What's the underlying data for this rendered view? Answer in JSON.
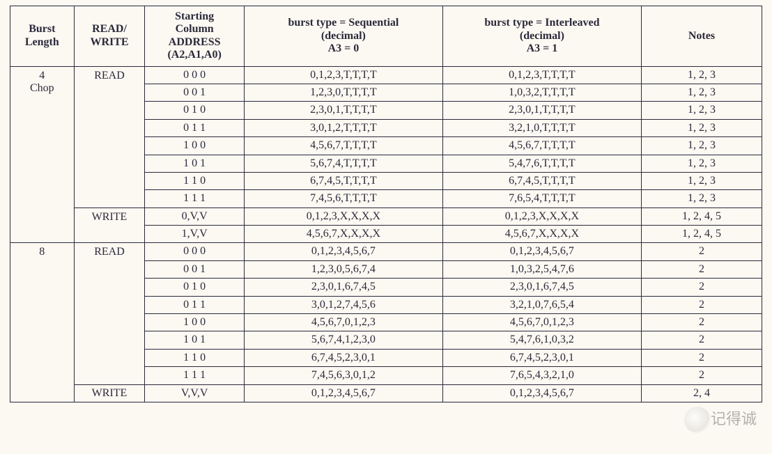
{
  "table": {
    "headers": {
      "burst_length": "Burst\nLength",
      "read_write": "READ/\nWRITE",
      "addr": "Starting\nColumn\nADDRESS\n(A2,A1,A0)",
      "seq": "burst type = Sequential\n(decimal)\nA3 = 0",
      "int": "burst type = Interleaved\n(decimal)\nA3 = 1",
      "notes": "Notes"
    },
    "sections": [
      {
        "burst_length": "4\nChop",
        "groups": [
          {
            "rw": "READ",
            "rows": [
              {
                "addr": "0 0 0",
                "seq": "0,1,2,3,T,T,T,T",
                "int": "0,1,2,3,T,T,T,T",
                "notes": "1, 2, 3"
              },
              {
                "addr": "0 0 1",
                "seq": "1,2,3,0,T,T,T,T",
                "int": "1,0,3,2,T,T,T,T",
                "notes": "1, 2, 3"
              },
              {
                "addr": "0 1 0",
                "seq": "2,3,0,1,T,T,T,T",
                "int": "2,3,0,1,T,T,T,T",
                "notes": "1, 2, 3"
              },
              {
                "addr": "0 1 1",
                "seq": "3,0,1,2,T,T,T,T",
                "int": "3,2,1,0,T,T,T,T",
                "notes": "1, 2, 3"
              },
              {
                "addr": "1 0 0",
                "seq": "4,5,6,7,T,T,T,T",
                "int": "4,5,6,7,T,T,T,T",
                "notes": "1, 2, 3"
              },
              {
                "addr": "1 0 1",
                "seq": "5,6,7,4,T,T,T,T",
                "int": "5,4,7,6,T,T,T,T",
                "notes": "1, 2, 3"
              },
              {
                "addr": "1 1 0",
                "seq": "6,7,4,5,T,T,T,T",
                "int": "6,7,4,5,T,T,T,T",
                "notes": "1, 2, 3"
              },
              {
                "addr": "1 1 1",
                "seq": "7,4,5,6,T,T,T,T",
                "int": "7,6,5,4,T,T,T,T",
                "notes": "1, 2, 3"
              }
            ]
          },
          {
            "rw": "WRITE",
            "rows": [
              {
                "addr": "0,V,V",
                "seq": "0,1,2,3,X,X,X,X",
                "int": "0,1,2,3,X,X,X,X",
                "notes": "1, 2, 4, 5"
              },
              {
                "addr": "1,V,V",
                "seq": "4,5,6,7,X,X,X,X",
                "int": "4,5,6,7,X,X,X,X",
                "notes": "1, 2, 4, 5"
              }
            ]
          }
        ]
      },
      {
        "burst_length": "8",
        "groups": [
          {
            "rw": "READ",
            "rows": [
              {
                "addr": "0 0 0",
                "seq": "0,1,2,3,4,5,6,7",
                "int": "0,1,2,3,4,5,6,7",
                "notes": "2"
              },
              {
                "addr": "0 0 1",
                "seq": "1,2,3,0,5,6,7,4",
                "int": "1,0,3,2,5,4,7,6",
                "notes": "2"
              },
              {
                "addr": "0 1 0",
                "seq": "2,3,0,1,6,7,4,5",
                "int": "2,3,0,1,6,7,4,5",
                "notes": "2"
              },
              {
                "addr": "0 1 1",
                "seq": "3,0,1,2,7,4,5,6",
                "int": "3,2,1,0,7,6,5,4",
                "notes": "2"
              },
              {
                "addr": "1 0 0",
                "seq": "4,5,6,7,0,1,2,3",
                "int": "4,5,6,7,0,1,2,3",
                "notes": "2"
              },
              {
                "addr": "1 0 1",
                "seq": "5,6,7,4,1,2,3,0",
                "int": "5,4,7,6,1,0,3,2",
                "notes": "2"
              },
              {
                "addr": "1 1 0",
                "seq": "6,7,4,5,2,3,0,1",
                "int": "6,7,4,5,2,3,0,1",
                "notes": "2"
              },
              {
                "addr": "1 1 1",
                "seq": "7,4,5,6,3,0,1,2",
                "int": "7,6,5,4,3,2,1,0",
                "notes": "2"
              }
            ]
          },
          {
            "rw": "WRITE",
            "rows": [
              {
                "addr": "V,V,V",
                "seq": "0,1,2,3,4,5,6,7",
                "int": "0,1,2,3,4,5,6,7",
                "notes": "2, 4"
              }
            ]
          }
        ]
      }
    ]
  },
  "watermark_text": "记得诚",
  "style": {
    "background_color": "#fcf8f2",
    "border_color": "#2a2a3a",
    "font_family": "Times New Roman",
    "font_size_body": 16,
    "font_size_watermark": 22,
    "text_color": "#2a2a3a",
    "watermark_color": "rgba(120,120,120,0.55)"
  }
}
